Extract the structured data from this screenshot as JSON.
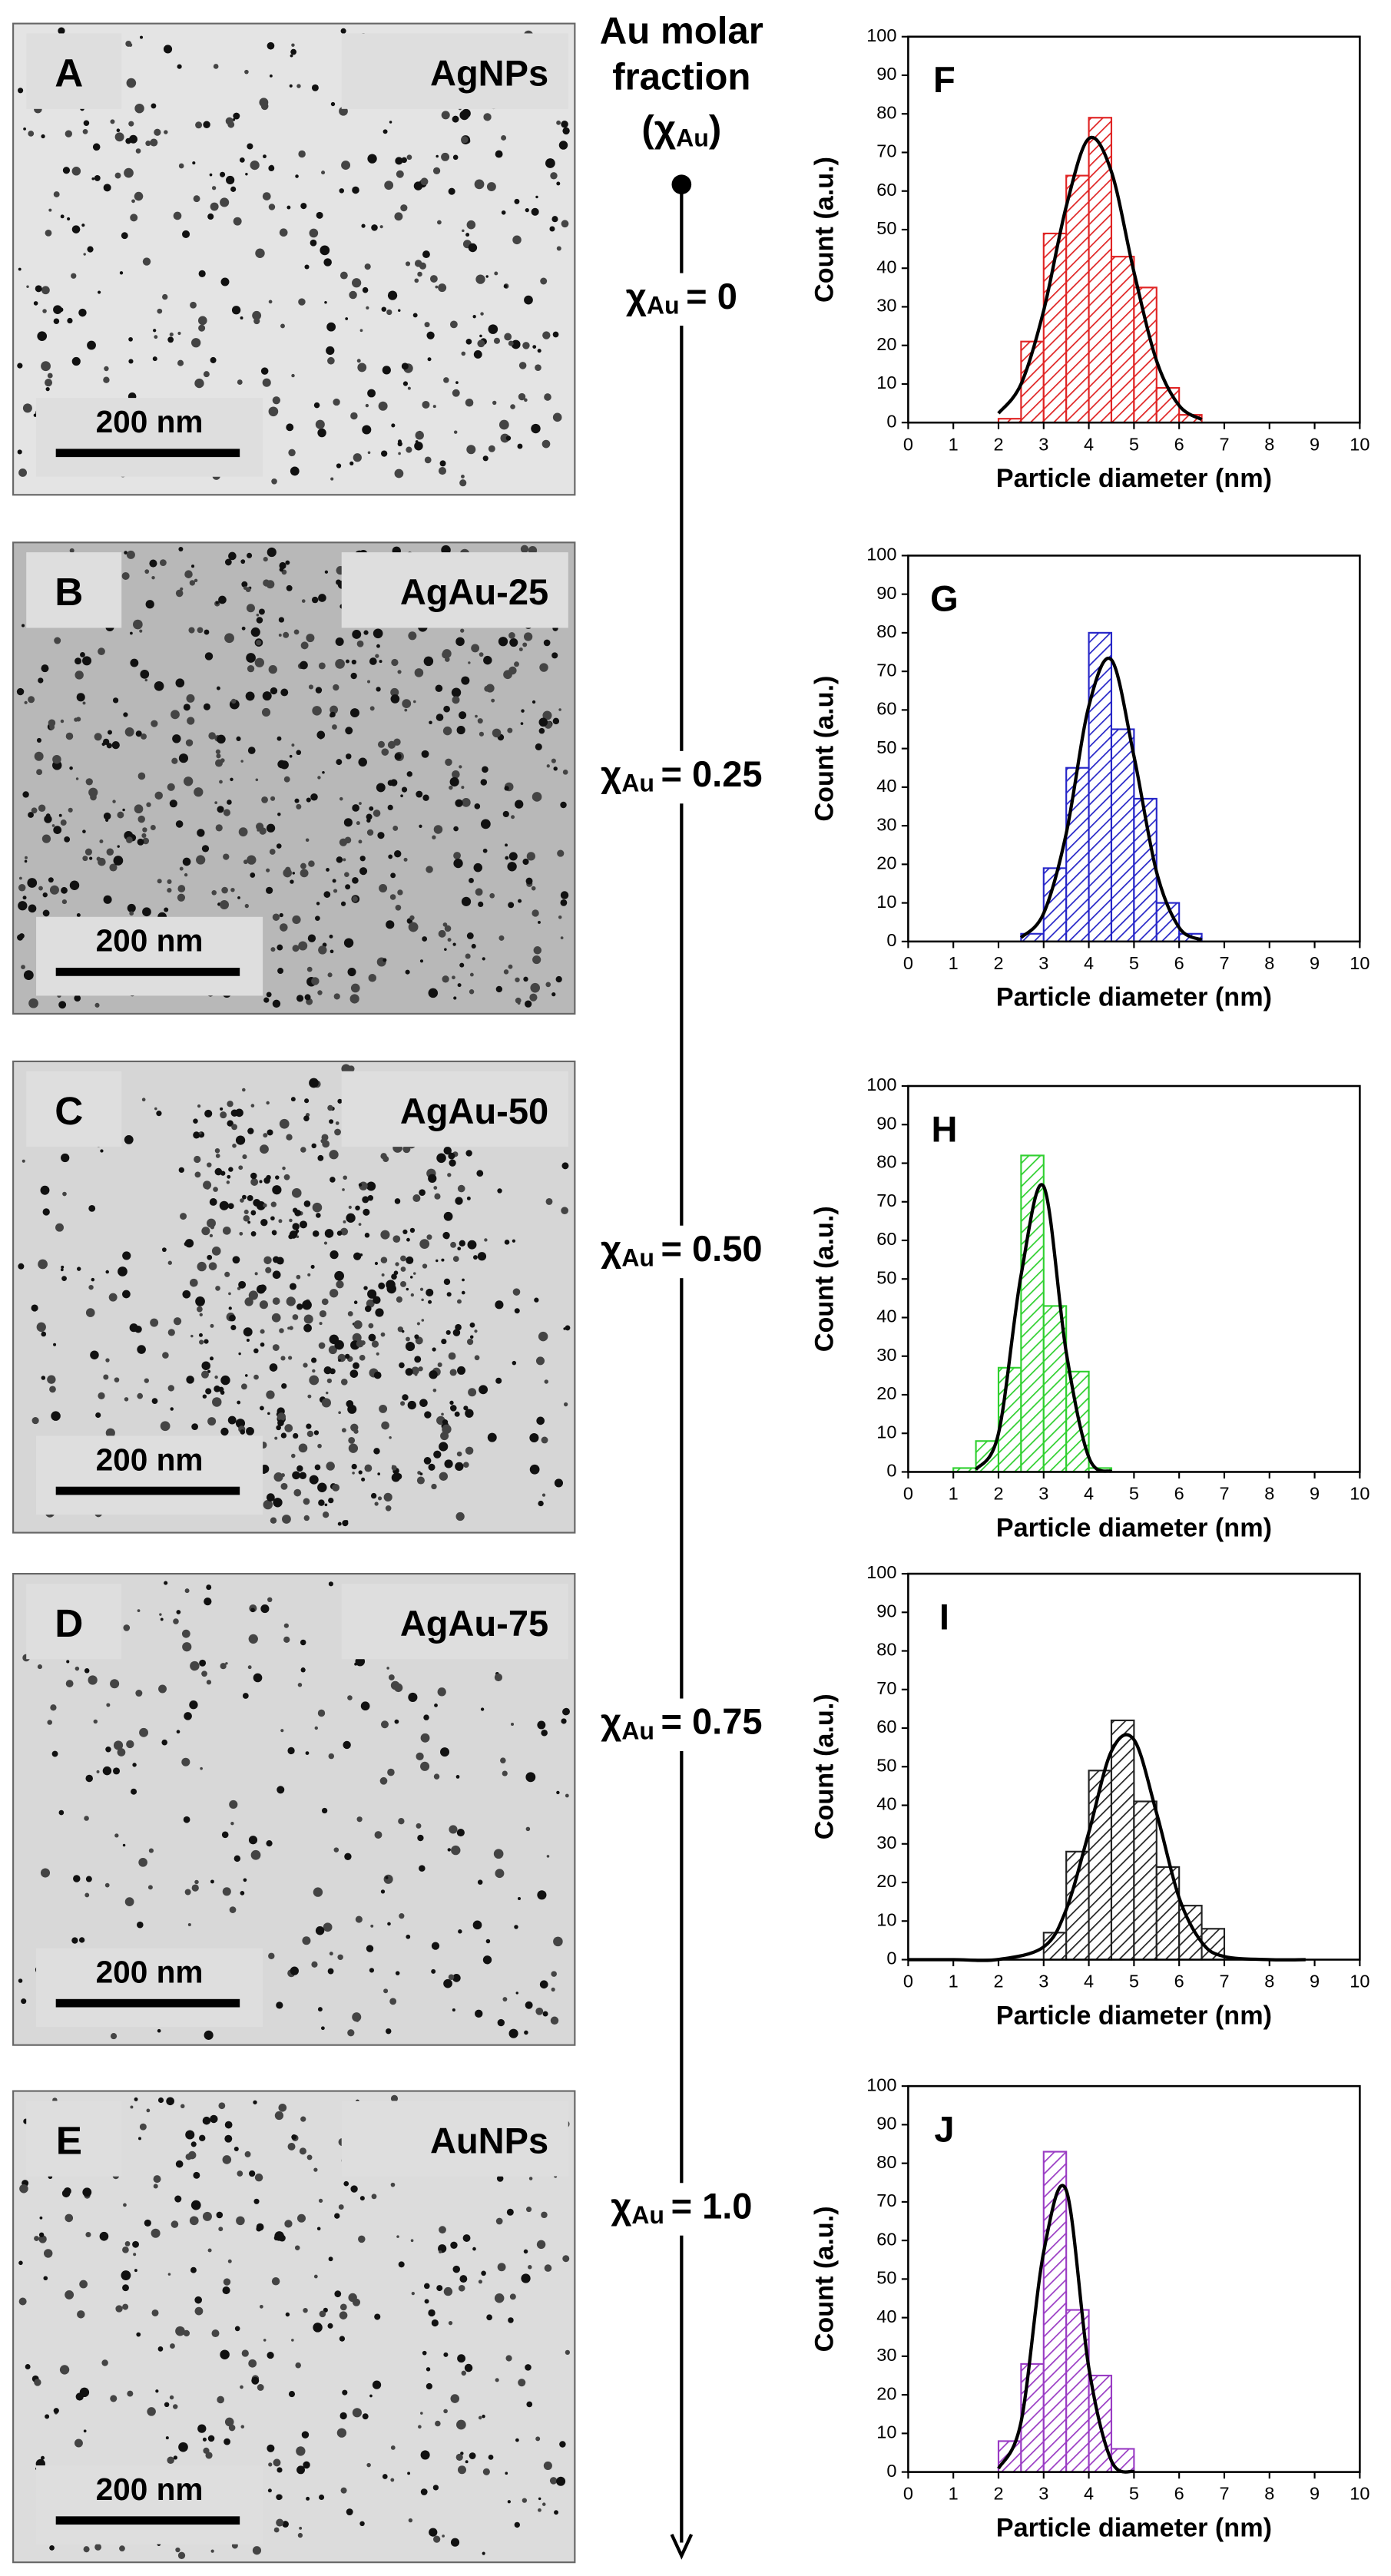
{
  "micrographs": [
    {
      "panel": "A",
      "label": "AgNPs",
      "scale_bar": "200 nm"
    },
    {
      "panel": "B",
      "label": "AgAu-25",
      "scale_bar": "200 nm"
    },
    {
      "panel": "C",
      "label": "AgAu-50",
      "scale_bar": "200 nm"
    },
    {
      "panel": "D",
      "label": "AgAu-75",
      "scale_bar": "200 nm"
    },
    {
      "panel": "E",
      "label": "AuNPs",
      "scale_bar": "200 nm"
    }
  ],
  "timeline": {
    "title_lines": [
      "Au molar",
      "fraction"
    ],
    "symbol": {
      "open": "(",
      "symbol": "χ",
      "sub": "Au",
      "close": ")"
    },
    "stops": [
      {
        "symbol": "χ",
        "sub": "Au",
        "text": "= 0"
      },
      {
        "symbol": "χ",
        "sub": "Au",
        "text": "= 0.25"
      },
      {
        "symbol": "χ",
        "sub": "Au",
        "text": "= 0.50"
      },
      {
        "symbol": "χ",
        "sub": "Au",
        "text": "= 0.75"
      },
      {
        "symbol": "χ",
        "sub": "Au",
        "text": "= 1.0"
      }
    ]
  },
  "chart_data": [
    {
      "type": "histogram",
      "panel": "F",
      "xlabel": "Particle diameter (nm)",
      "ylabel": "Count (a.u.)",
      "bins": [
        2.0,
        2.5,
        3.0,
        3.5,
        4.0,
        4.5,
        5.0,
        5.5,
        6.0,
        6.5
      ],
      "values": [
        1,
        21,
        49,
        64,
        79,
        43,
        35,
        9,
        2
      ],
      "color": "#e02424",
      "fit": {
        "x": [
          2.0,
          2.5,
          3.0,
          3.5,
          4.0,
          4.5,
          5.0,
          5.5,
          6.0,
          6.5
        ],
        "values": [
          2.4,
          10,
          29,
          56,
          73.6,
          65,
          39,
          16,
          4.4,
          0.8
        ]
      },
      "fit_color": "#000000",
      "xlim": [
        0,
        10
      ],
      "ylim": [
        0,
        100
      ],
      "xticks": [
        0,
        1,
        2,
        3,
        4,
        5,
        6,
        7,
        8,
        9,
        10
      ],
      "yticks": [
        0,
        10,
        20,
        30,
        40,
        50,
        60,
        70,
        80,
        90,
        100
      ]
    },
    {
      "type": "histogram",
      "panel": "G",
      "xlabel": "Particle diameter (nm)",
      "ylabel": "Count (a.u.)",
      "bins": [
        2.5,
        3.0,
        3.5,
        4.0,
        4.5,
        5.0,
        5.5,
        6.0,
        6.5
      ],
      "values": [
        2,
        19,
        45,
        80,
        55,
        37,
        10,
        2
      ],
      "color": "#2626c8",
      "fit": {
        "x": [
          2.5,
          3.0,
          3.5,
          4.0,
          4.5,
          5.0,
          5.5,
          6.0,
          6.5
        ],
        "values": [
          1.0,
          7.3,
          28,
          61,
          73,
          48,
          18,
          3.6,
          0.4
        ]
      },
      "fit_color": "#000000",
      "xlim": [
        0,
        10
      ],
      "ylim": [
        0,
        100
      ],
      "xticks": [
        0,
        1,
        2,
        3,
        4,
        5,
        6,
        7,
        8,
        9,
        10
      ],
      "yticks": [
        0,
        10,
        20,
        30,
        40,
        50,
        60,
        70,
        80,
        90,
        100
      ]
    },
    {
      "type": "histogram",
      "panel": "H",
      "xlabel": "Particle diameter (nm)",
      "ylabel": "Count (a.u.)",
      "bins": [
        1.0,
        1.5,
        2.0,
        2.5,
        3.0,
        3.5,
        4.0,
        4.5
      ],
      "values": [
        1,
        8,
        27,
        82,
        43,
        26,
        1
      ],
      "color": "#30d030",
      "fit": {
        "x": [
          1.5,
          2.0,
          2.5,
          3.0,
          3.5,
          4.0,
          4.5
        ],
        "values": [
          0.6,
          10,
          51,
          74,
          31,
          3.8,
          0.1
        ]
      },
      "fit_color": "#000000",
      "xlim": [
        0,
        10
      ],
      "ylim": [
        0,
        100
      ],
      "xticks": [
        0,
        1,
        2,
        3,
        4,
        5,
        6,
        7,
        8,
        9,
        10
      ],
      "yticks": [
        0,
        10,
        20,
        30,
        40,
        50,
        60,
        70,
        80,
        90,
        100
      ]
    },
    {
      "type": "histogram",
      "panel": "I",
      "xlabel": "Particle diameter (nm)",
      "ylabel": "Count (a.u.)",
      "bins": [
        3.0,
        3.5,
        4.0,
        4.5,
        5.0,
        5.5,
        6.0,
        6.5,
        7.0
      ],
      "values": [
        7,
        28,
        49,
        62,
        41,
        24,
        14,
        8
      ],
      "color": "#222222",
      "fit": {
        "x": [
          0,
          1,
          2,
          3,
          3.5,
          4,
          4.5,
          5,
          5.5,
          6,
          6.5,
          7,
          8,
          8.8
        ],
        "values": [
          0,
          0,
          0.05,
          3.3,
          13,
          33,
          54,
          57,
          38,
          16,
          4.5,
          0.8,
          0,
          0
        ]
      },
      "fit_color": "#000000",
      "xlim": [
        0,
        10
      ],
      "ylim": [
        0,
        100
      ],
      "xticks": [
        0,
        1,
        2,
        3,
        4,
        5,
        6,
        7,
        8,
        9,
        10
      ],
      "yticks": [
        0,
        10,
        20,
        30,
        40,
        50,
        60,
        70,
        80,
        90,
        100
      ]
    },
    {
      "type": "histogram",
      "panel": "J",
      "xlabel": "Particle diameter (nm)",
      "ylabel": "Count (a.u.)",
      "bins": [
        2.0,
        2.5,
        3.0,
        3.5,
        4.0,
        4.5,
        5.0
      ],
      "values": [
        8,
        28,
        83,
        42,
        25,
        6
      ],
      "color": "#9a3cc4",
      "fit": {
        "x": [
          2.0,
          2.5,
          3.0,
          3.5,
          4.0,
          4.5,
          5.0
        ],
        "values": [
          0.9,
          13,
          57,
          73,
          27,
          2.9,
          0.1
        ]
      },
      "fit_color": "#000000",
      "xlim": [
        0,
        10
      ],
      "ylim": [
        0,
        100
      ],
      "xticks": [
        0,
        1,
        2,
        3,
        4,
        5,
        6,
        7,
        8,
        9,
        10
      ],
      "yticks": [
        0,
        10,
        20,
        30,
        40,
        50,
        60,
        70,
        80,
        90,
        100
      ]
    }
  ]
}
